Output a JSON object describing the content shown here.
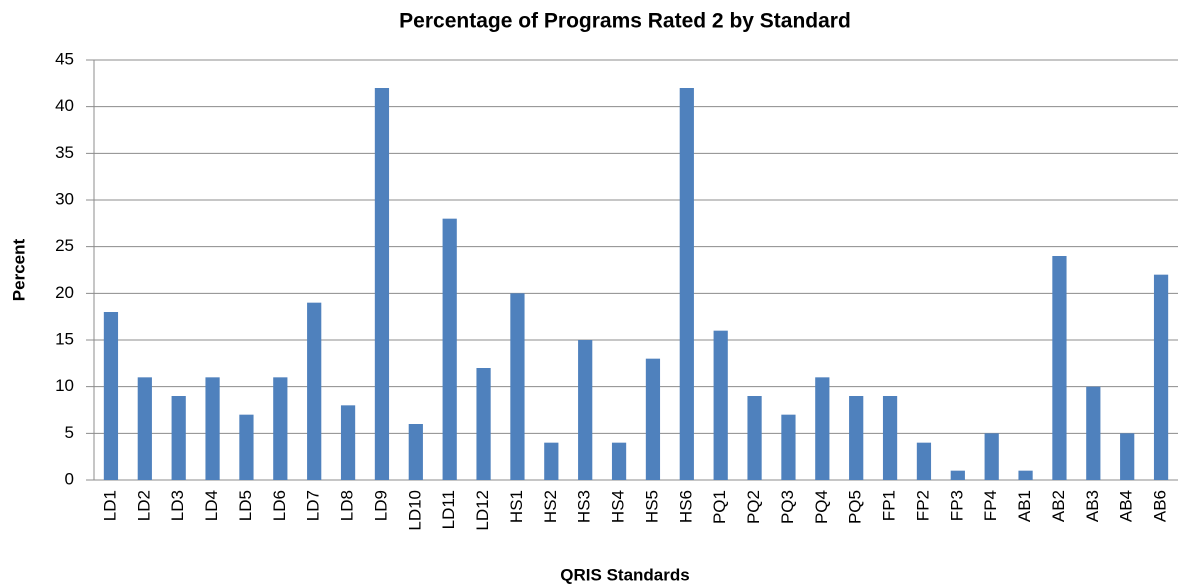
{
  "chart_data": {
    "type": "bar",
    "title": "Percentage of Programs Rated 2 by Standard",
    "x_label": "QRIS Standards",
    "y_label": "Percent",
    "categories": [
      "LD1",
      "LD2",
      "LD3",
      "LD4",
      "LD5",
      "LD6",
      "LD7",
      "LD8",
      "LD9",
      "LD10",
      "LD11",
      "LD12",
      "HS1",
      "HS2",
      "HS3",
      "HS4",
      "HS5",
      "HS6",
      "PQ1",
      "PQ2",
      "PQ3",
      "PQ4",
      "PQ5",
      "FP1",
      "FP2",
      "FP3",
      "FP4",
      "AB1",
      "AB2",
      "AB3",
      "AB4",
      "AB6"
    ],
    "values": [
      18,
      11,
      9,
      11,
      7,
      11,
      19,
      8,
      42,
      6,
      28,
      12,
      20,
      4,
      15,
      4,
      13,
      42,
      16,
      9,
      7,
      11,
      9,
      9,
      4,
      1,
      5,
      1,
      24,
      10,
      5,
      22
    ],
    "color": "#4f81bd",
    "ylim": [
      0,
      45
    ],
    "yticks": [
      0,
      5,
      10,
      15,
      20,
      25,
      30,
      35,
      40,
      45
    ],
    "grid": true
  }
}
